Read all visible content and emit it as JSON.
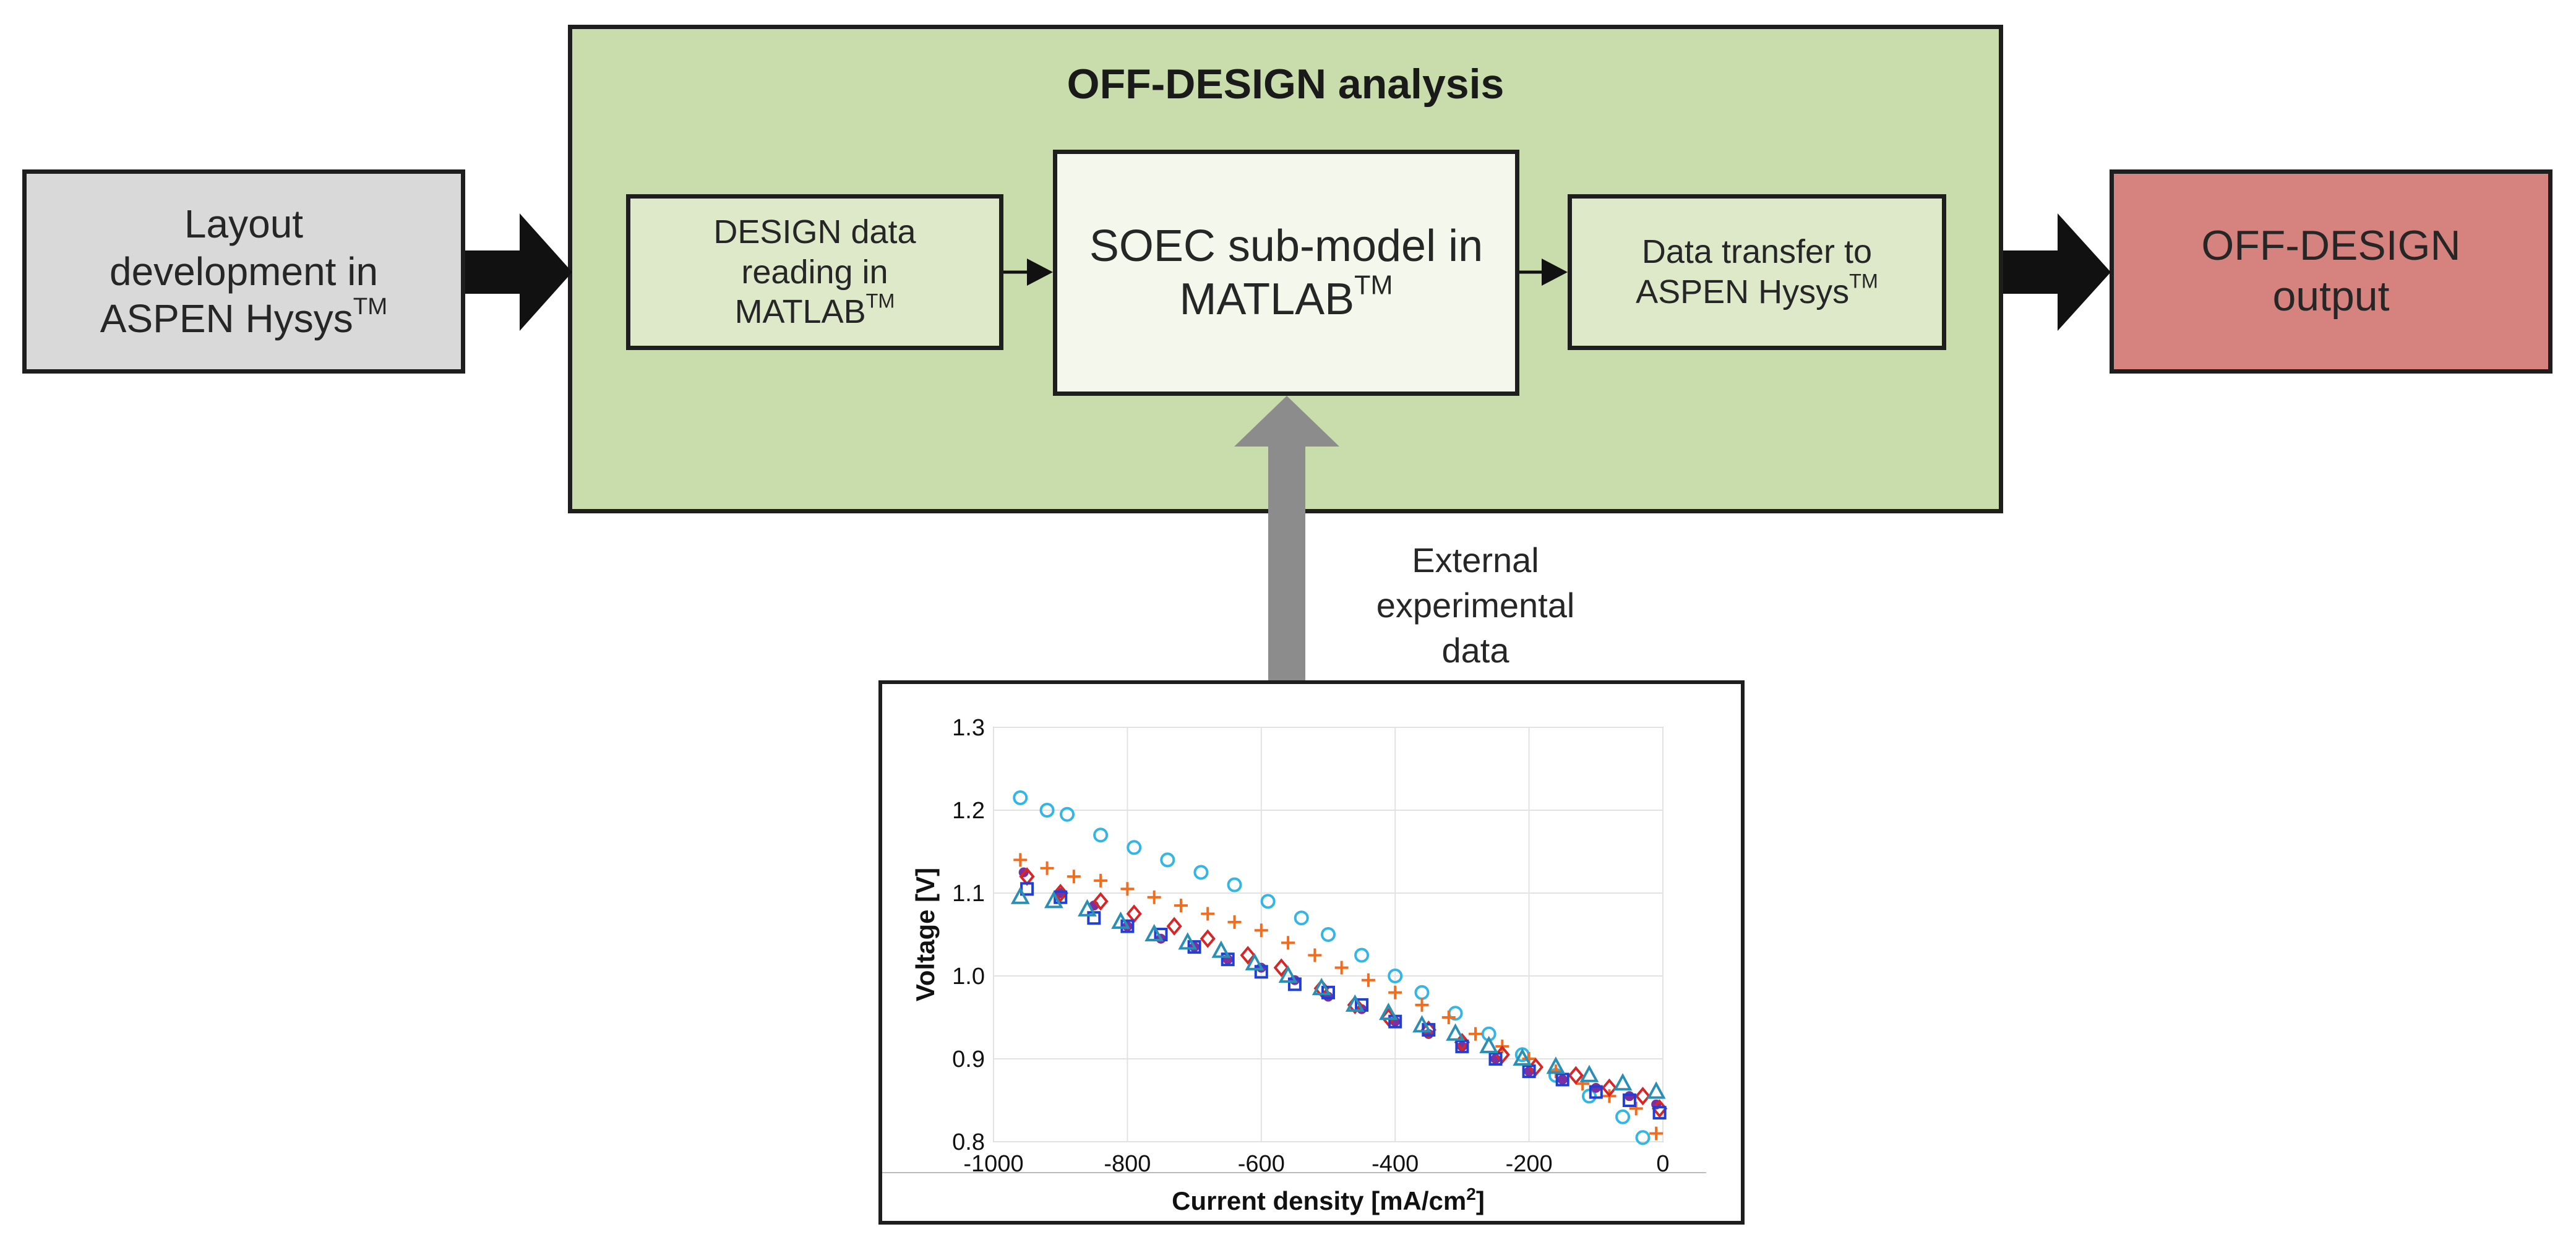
{
  "boxes": {
    "layout": {
      "line1": "Layout",
      "line2": "development in",
      "line3": "ASPEN Hysys",
      "sup": "TM"
    },
    "analysis_title": "OFF-DESIGN analysis",
    "design": {
      "line1": "DESIGN data",
      "line2": "reading in",
      "line3": "MATLAB",
      "sup": "TM"
    },
    "soec": {
      "line1": "SOEC sub-model in",
      "line2": "MATLAB",
      "sup": "TM"
    },
    "transfer": {
      "line1": "Data transfer to",
      "line2": "ASPEN Hysys",
      "sup": "TM"
    },
    "output": {
      "line1": "OFF-DESIGN",
      "line2": "output"
    }
  },
  "external": {
    "line1": "External",
    "line2": "experimental",
    "line3": "data"
  },
  "colors": {
    "layout_fill": "#d9d9d9",
    "analysis_fill": "#c9dcac",
    "inner_fill": "#dde9c8",
    "soec_fill": "#f4f8ec",
    "output_fill": "#d6837f",
    "gray_arrow": "#8c8c8c"
  },
  "chart_data": {
    "type": "scatter",
    "xlabel": "Current density [mA/cm",
    "xlabel_sup": "2",
    "xlabel_end": "]",
    "ylabel": "Voltage [V]",
    "xlim": [
      -1000,
      0
    ],
    "ylim": [
      0.8,
      1.3
    ],
    "xticks": [
      -1000,
      -800,
      -600,
      -400,
      -200,
      0
    ],
    "yticks": [
      0.8,
      0.9,
      1.0,
      1.1,
      1.2,
      1.3
    ],
    "xtick_labels": [
      "-1000",
      "-800",
      "-600",
      "-400",
      "-200",
      "0"
    ],
    "ytick_labels": [
      "0.8",
      "0.9",
      "1.0",
      "1.1",
      "1.2",
      "1.3"
    ],
    "grid": true,
    "series": [
      {
        "name": "cyan-circles",
        "marker": "circle",
        "color": "#33b5e5",
        "x": [
          -960,
          -920,
          -890,
          -840,
          -790,
          -740,
          -690,
          -640,
          -590,
          -540,
          -500,
          -450,
          -400,
          -360,
          -310,
          -260,
          -210,
          -160,
          -110,
          -60,
          -30
        ],
        "y": [
          1.215,
          1.2,
          1.195,
          1.17,
          1.155,
          1.14,
          1.125,
          1.11,
          1.09,
          1.07,
          1.05,
          1.025,
          1.0,
          0.98,
          0.955,
          0.93,
          0.905,
          0.88,
          0.855,
          0.83,
          0.805
        ]
      },
      {
        "name": "orange-plus",
        "marker": "plus",
        "color": "#f26c1d",
        "x": [
          -960,
          -920,
          -880,
          -840,
          -800,
          -760,
          -720,
          -680,
          -640,
          -600,
          -560,
          -520,
          -480,
          -440,
          -400,
          -360,
          -320,
          -280,
          -240,
          -200,
          -160,
          -120,
          -80,
          -40,
          -10
        ],
        "y": [
          1.14,
          1.13,
          1.12,
          1.115,
          1.105,
          1.095,
          1.085,
          1.075,
          1.065,
          1.055,
          1.04,
          1.025,
          1.01,
          0.995,
          0.98,
          0.965,
          0.95,
          0.93,
          0.915,
          0.9,
          0.885,
          0.87,
          0.855,
          0.84,
          0.81
        ]
      },
      {
        "name": "purple-dots",
        "marker": "dot",
        "color": "#7b2fa0",
        "x": [
          -955,
          -900,
          -850,
          -800,
          -750,
          -700,
          -650,
          -600,
          -550,
          -500,
          -450,
          -400,
          -350,
          -300,
          -250,
          -200,
          -150,
          -100,
          -50,
          -10
        ],
        "y": [
          1.125,
          1.1,
          1.085,
          1.06,
          1.045,
          1.035,
          1.02,
          1.01,
          0.995,
          0.975,
          0.96,
          0.945,
          0.93,
          0.915,
          0.9,
          0.885,
          0.875,
          0.865,
          0.855,
          0.845
        ]
      },
      {
        "name": "red-diamonds",
        "marker": "diamond",
        "color": "#d62728",
        "x": [
          -950,
          -900,
          -840,
          -790,
          -730,
          -680,
          -620,
          -570,
          -510,
          -460,
          -410,
          -350,
          -300,
          -240,
          -190,
          -130,
          -80,
          -30,
          -5
        ],
        "y": [
          1.12,
          1.1,
          1.09,
          1.075,
          1.06,
          1.045,
          1.025,
          1.01,
          0.985,
          0.965,
          0.95,
          0.935,
          0.92,
          0.905,
          0.89,
          0.88,
          0.865,
          0.855,
          0.84
        ]
      },
      {
        "name": "blue-squares",
        "marker": "square",
        "color": "#1f3fd6",
        "x": [
          -950,
          -900,
          -850,
          -800,
          -750,
          -700,
          -650,
          -600,
          -550,
          -500,
          -450,
          -400,
          -350,
          -300,
          -250,
          -200,
          -150,
          -100,
          -50,
          -5
        ],
        "y": [
          1.105,
          1.095,
          1.07,
          1.06,
          1.05,
          1.035,
          1.02,
          1.005,
          0.99,
          0.98,
          0.965,
          0.945,
          0.935,
          0.915,
          0.9,
          0.885,
          0.875,
          0.86,
          0.85,
          0.835
        ]
      },
      {
        "name": "teal-triangles",
        "marker": "triangle",
        "color": "#2a8fb4",
        "x": [
          -960,
          -910,
          -860,
          -810,
          -760,
          -710,
          -660,
          -610,
          -560,
          -510,
          -460,
          -410,
          -360,
          -310,
          -260,
          -210,
          -160,
          -110,
          -60,
          -10
        ],
        "y": [
          1.095,
          1.09,
          1.08,
          1.065,
          1.05,
          1.04,
          1.03,
          1.015,
          1.0,
          0.985,
          0.965,
          0.955,
          0.94,
          0.93,
          0.915,
          0.9,
          0.89,
          0.88,
          0.87,
          0.86
        ]
      }
    ]
  }
}
